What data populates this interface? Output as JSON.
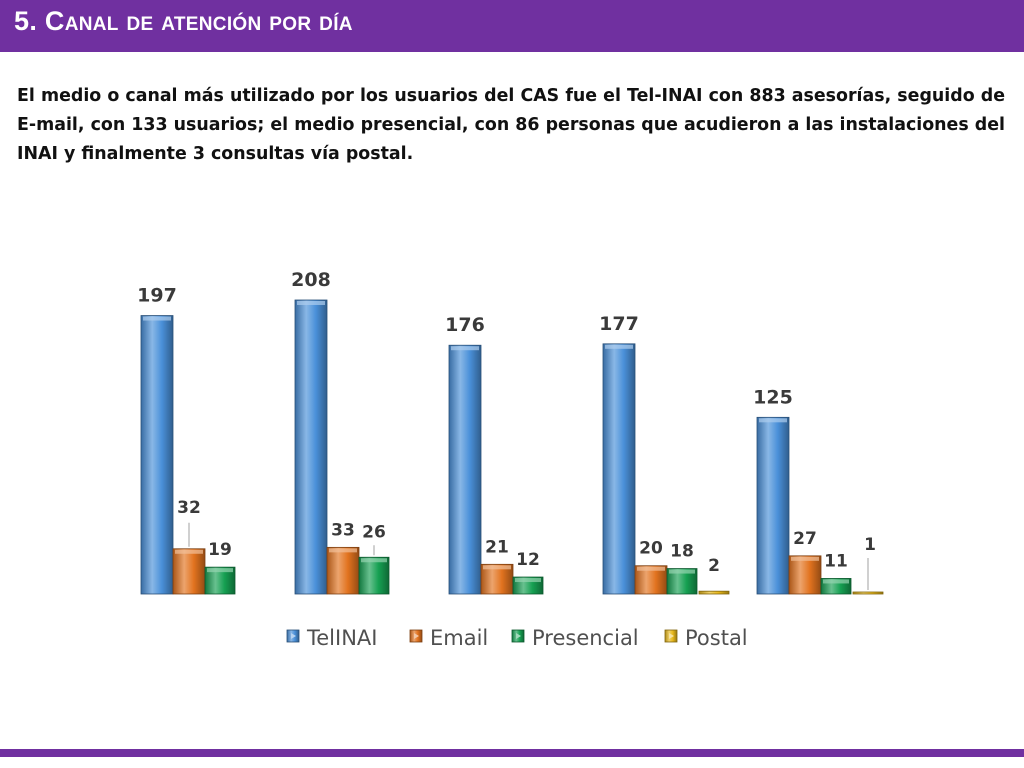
{
  "slide": {
    "title": "5. Canal de atención por día",
    "intro": "El medio o canal más utilizado por los usuarios del CAS fue el Tel-INAI con 883 asesorías, seguido de E-mail, con 133 usuarios; el medio presencial, con 86 personas que acudieron a las instalaciones del INAI y finalmente 3 consultas vía postal."
  },
  "colors": {
    "brand_purple": "#7030a0",
    "TelINAI": "#4a90d9",
    "Email": "#e2731f",
    "Presencial": "#16a052",
    "Postal": "#e8b81a"
  },
  "chart_data": {
    "type": "bar",
    "categories": [
      "",
      "",
      "",
      "",
      ""
    ],
    "series": [
      {
        "name": "TelINAI",
        "values": [
          197,
          208,
          176,
          177,
          125
        ]
      },
      {
        "name": "Email",
        "values": [
          32,
          33,
          21,
          20,
          27
        ]
      },
      {
        "name": "Presencial",
        "values": [
          19,
          26,
          12,
          18,
          11
        ]
      },
      {
        "name": "Postal",
        "values": [
          0,
          0,
          0,
          2,
          1
        ]
      }
    ],
    "data_labels": [
      [
        "197",
        "208",
        "176",
        "177",
        "125"
      ],
      [
        "32",
        "33",
        "21",
        "20",
        "27"
      ],
      [
        "19",
        "26",
        "12",
        "18",
        "11"
      ],
      [
        "",
        "",
        "",
        "2",
        "1"
      ]
    ],
    "ylim": [
      0,
      208
    ],
    "grid": false,
    "legend": "bottom",
    "style": "3d-beveled"
  }
}
